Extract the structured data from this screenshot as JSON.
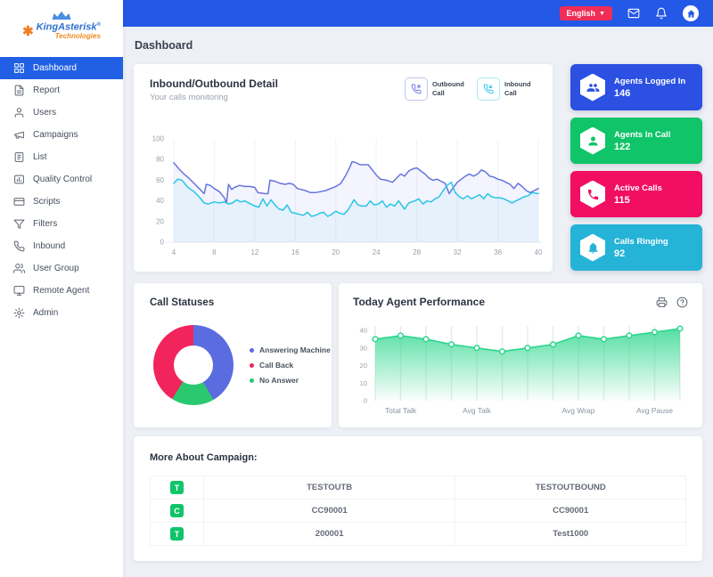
{
  "brand": {
    "name": "KingAsterisk",
    "registered": "®",
    "tagline": "Technologies"
  },
  "topbar": {
    "language_label": "English"
  },
  "page": {
    "title": "Dashboard"
  },
  "sidebar": {
    "items": [
      {
        "label": "Dashboard",
        "icon": "dashboard-icon",
        "active": true
      },
      {
        "label": "Report",
        "icon": "report-icon",
        "active": false
      },
      {
        "label": "Users",
        "icon": "users-icon",
        "active": false
      },
      {
        "label": "Campaigns",
        "icon": "campaigns-icon",
        "active": false
      },
      {
        "label": "List",
        "icon": "list-icon",
        "active": false
      },
      {
        "label": "Quality Control",
        "icon": "quality-control-icon",
        "active": false
      },
      {
        "label": "Scripts",
        "icon": "scripts-icon",
        "active": false
      },
      {
        "label": "Filters",
        "icon": "filters-icon",
        "active": false
      },
      {
        "label": "Inbound",
        "icon": "inbound-phone-icon",
        "active": false
      },
      {
        "label": "User Group",
        "icon": "user-group-icon",
        "active": false
      },
      {
        "label": "Remote Agent",
        "icon": "remote-agent-icon",
        "active": false
      },
      {
        "label": "Admin",
        "icon": "admin-gear-icon",
        "active": false
      }
    ]
  },
  "main_chart": {
    "title": "Inbound/Outbound Detail",
    "subtitle": "Your calls monitoring",
    "legend": [
      {
        "label": "Outbound Call",
        "color": "#6674dd",
        "icon": "outbound-call-icon"
      },
      {
        "label": "Inbound Call",
        "color": "#28c5e8",
        "icon": "inbound-call-icon"
      }
    ]
  },
  "stat_cards": [
    {
      "label": "Agents Logged In",
      "value": "146",
      "color": "#2b50e2",
      "icon": "agents-group-icon"
    },
    {
      "label": "Agents In Call",
      "value": "122",
      "color": "#10c469",
      "icon": "agent-person-icon"
    },
    {
      "label": "Active Calls",
      "value": "115",
      "color": "#f10e63",
      "icon": "phone-filled-icon"
    },
    {
      "label": "Calls Ringing",
      "value": "92",
      "color": "#25b3d7",
      "icon": "bell-filled-icon"
    }
  ],
  "call_statuses": {
    "title": "Call Statuses",
    "legend": [
      {
        "label": "Answering Machine",
        "color": "#5b6ce0"
      },
      {
        "label": "Call Back",
        "color": "#f1255c"
      },
      {
        "label": "No Answer",
        "color": "#2bc96f"
      }
    ]
  },
  "performance": {
    "title": "Today Agent Performance"
  },
  "campaign": {
    "title": "More About Campaign:",
    "rows": [
      {
        "badge": "T",
        "name": "TESTOUTB",
        "detail": "TESTOUTBOUND"
      },
      {
        "badge": "C",
        "name": "CC90001",
        "detail": "CC90001"
      },
      {
        "badge": "T",
        "name": "200001",
        "detail": "Test1000"
      }
    ]
  },
  "chart_data": [
    {
      "id": "inbound_outbound",
      "type": "line",
      "title": "Inbound/Outbound Detail",
      "xlabel": "",
      "ylabel": "",
      "xlim": [
        4,
        40
      ],
      "ylim": [
        0,
        100
      ],
      "x_ticks": [
        4,
        8,
        12,
        16,
        20,
        24,
        28,
        32,
        36,
        40
      ],
      "y_ticks": [
        0,
        20,
        40,
        60,
        80,
        100
      ],
      "grid": "faint-vertical",
      "legend_position": "top-right",
      "series": [
        {
          "name": "Outbound Call",
          "color": "#6674dd",
          "fill": "rgba(102,116,224,0.08)",
          "points": [
            [
              4,
              77
            ],
            [
              4.5,
              71
            ],
            [
              5,
              66
            ],
            [
              5.5,
              62
            ],
            [
              6,
              57
            ],
            [
              6.5,
              52
            ],
            [
              7,
              47
            ],
            [
              7.2,
              56
            ],
            [
              7.6,
              55
            ],
            [
              8,
              52
            ],
            [
              8.5,
              49
            ],
            [
              9,
              43
            ],
            [
              9.2,
              38
            ],
            [
              9.4,
              56
            ],
            [
              9.7,
              51
            ],
            [
              10,
              53
            ],
            [
              10.5,
              55
            ],
            [
              11,
              54
            ],
            [
              11.5,
              54
            ],
            [
              12,
              53
            ],
            [
              12.3,
              48
            ],
            [
              13,
              47
            ],
            [
              13.3,
              47
            ],
            [
              13.5,
              60
            ],
            [
              14,
              59
            ],
            [
              14.5,
              57
            ],
            [
              15,
              56
            ],
            [
              15.4,
              57
            ],
            [
              15.8,
              56
            ],
            [
              16.2,
              52
            ],
            [
              16.6,
              51
            ],
            [
              17,
              50
            ],
            [
              17.5,
              48
            ],
            [
              18,
              48
            ],
            [
              18.5,
              49
            ],
            [
              19,
              50
            ],
            [
              19.5,
              52
            ],
            [
              20,
              54
            ],
            [
              20.5,
              57
            ],
            [
              21,
              65
            ],
            [
              21.4,
              73
            ],
            [
              21.6,
              78
            ],
            [
              22,
              77
            ],
            [
              22.4,
              75
            ],
            [
              23.2,
              75
            ],
            [
              23.6,
              70
            ],
            [
              24,
              65
            ],
            [
              24.4,
              61
            ],
            [
              25,
              60
            ],
            [
              25.6,
              58
            ],
            [
              26,
              62
            ],
            [
              26.4,
              66
            ],
            [
              26.8,
              64
            ],
            [
              27.2,
              69
            ],
            [
              27.6,
              71
            ],
            [
              28,
              72
            ],
            [
              28.4,
              69
            ],
            [
              28.8,
              66
            ],
            [
              29.2,
              62
            ],
            [
              29.6,
              60
            ],
            [
              30,
              61
            ],
            [
              30.4,
              59
            ],
            [
              30.8,
              57
            ],
            [
              31.2,
              47
            ],
            [
              31.6,
              53
            ],
            [
              32,
              58
            ],
            [
              32.4,
              61
            ],
            [
              32.8,
              64
            ],
            [
              33.2,
              66
            ],
            [
              33.6,
              64
            ],
            [
              34,
              66
            ],
            [
              34.4,
              70
            ],
            [
              34.8,
              68
            ],
            [
              35.2,
              64
            ],
            [
              35.6,
              63
            ],
            [
              36,
              61
            ],
            [
              36.4,
              60
            ],
            [
              36.8,
              58
            ],
            [
              37.2,
              56
            ],
            [
              37.6,
              52
            ],
            [
              38,
              57
            ],
            [
              38.4,
              54
            ],
            [
              38.8,
              50
            ],
            [
              39.2,
              48
            ],
            [
              39.6,
              50
            ],
            [
              40,
              52
            ]
          ]
        },
        {
          "name": "Inbound Call",
          "color": "#28c5e8",
          "fill": "rgba(40,197,232,0.06)",
          "points": [
            [
              4,
              57
            ],
            [
              4.4,
              61
            ],
            [
              4.8,
              60
            ],
            [
              5.4,
              53
            ],
            [
              6,
              49
            ],
            [
              6.5,
              44
            ],
            [
              7,
              38
            ],
            [
              7.4,
              37
            ],
            [
              8,
              39
            ],
            [
              8.5,
              38
            ],
            [
              9,
              39
            ],
            [
              9.4,
              37
            ],
            [
              9.8,
              38
            ],
            [
              10.2,
              41
            ],
            [
              10.6,
              39
            ],
            [
              11,
              40
            ],
            [
              11.4,
              38
            ],
            [
              12,
              35
            ],
            [
              12.4,
              34
            ],
            [
              12.8,
              42
            ],
            [
              13.2,
              35
            ],
            [
              13.6,
              41
            ],
            [
              14,
              36
            ],
            [
              14.4,
              32
            ],
            [
              14.8,
              31
            ],
            [
              15.2,
              36
            ],
            [
              15.6,
              29
            ],
            [
              16,
              28
            ],
            [
              16.4,
              27
            ],
            [
              16.8,
              26
            ],
            [
              17.2,
              29
            ],
            [
              17.6,
              25
            ],
            [
              18,
              26
            ],
            [
              18.4,
              28
            ],
            [
              18.8,
              29
            ],
            [
              19.2,
              25
            ],
            [
              19.6,
              27
            ],
            [
              20,
              30
            ],
            [
              20.4,
              28
            ],
            [
              20.8,
              27
            ],
            [
              21.2,
              31
            ],
            [
              21.8,
              41
            ],
            [
              22.2,
              36
            ],
            [
              22.6,
              35
            ],
            [
              23,
              35
            ],
            [
              23.4,
              40
            ],
            [
              23.8,
              36
            ],
            [
              24.2,
              37
            ],
            [
              24.6,
              40
            ],
            [
              25,
              34
            ],
            [
              25.4,
              37
            ],
            [
              25.8,
              35
            ],
            [
              26.2,
              40
            ],
            [
              26.8,
              32
            ],
            [
              27.2,
              38
            ],
            [
              27.8,
              40
            ],
            [
              28.2,
              42
            ],
            [
              28.6,
              37
            ],
            [
              29,
              40
            ],
            [
              29.4,
              39
            ],
            [
              29.8,
              42
            ],
            [
              30.2,
              44
            ],
            [
              30.6,
              50
            ],
            [
              31,
              55
            ],
            [
              31.4,
              58
            ],
            [
              31.8,
              48
            ],
            [
              32.2,
              44
            ],
            [
              32.6,
              42
            ],
            [
              33,
              45
            ],
            [
              33.4,
              42
            ],
            [
              33.8,
              44
            ],
            [
              34.2,
              46
            ],
            [
              34.6,
              42
            ],
            [
              35,
              47
            ],
            [
              35.4,
              44
            ],
            [
              35.8,
              43
            ],
            [
              36.2,
              43
            ],
            [
              36.6,
              42
            ],
            [
              37,
              40
            ],
            [
              37.4,
              38
            ],
            [
              37.8,
              40
            ],
            [
              38.2,
              42
            ],
            [
              38.6,
              44
            ],
            [
              39,
              45
            ],
            [
              39.4,
              48
            ],
            [
              40,
              47
            ]
          ]
        }
      ]
    },
    {
      "id": "call_statuses",
      "type": "pie",
      "donut": true,
      "title": "Call Statuses",
      "slices_draw_order": [
        {
          "label": "Answering Machine",
          "value": 41.7,
          "color": "#5b6ce0"
        },
        {
          "label": "No Answer",
          "value": 17.2,
          "color": "#2bc96f"
        },
        {
          "label": "Call Back",
          "value": 41.1,
          "color": "#f1255c"
        }
      ],
      "legend_position": "right"
    },
    {
      "id": "agent_performance",
      "type": "area",
      "title": "Today Agent Performance",
      "color": "#2bd68c",
      "values": [
        35,
        37,
        35,
        32,
        30,
        28,
        30,
        32,
        37,
        35,
        37,
        39,
        41
      ],
      "y_ticks": [
        0,
        10,
        20,
        30,
        40
      ],
      "ylim": [
        0,
        45
      ],
      "x_labels": [
        {
          "label": "Total Talk",
          "index": 1
        },
        {
          "label": "Avg Talk",
          "index": 4
        },
        {
          "label": "Avg Wrap",
          "index": 8
        },
        {
          "label": "Avg Pause",
          "index": 11
        }
      ],
      "grid": "vertical-per-point"
    }
  ]
}
